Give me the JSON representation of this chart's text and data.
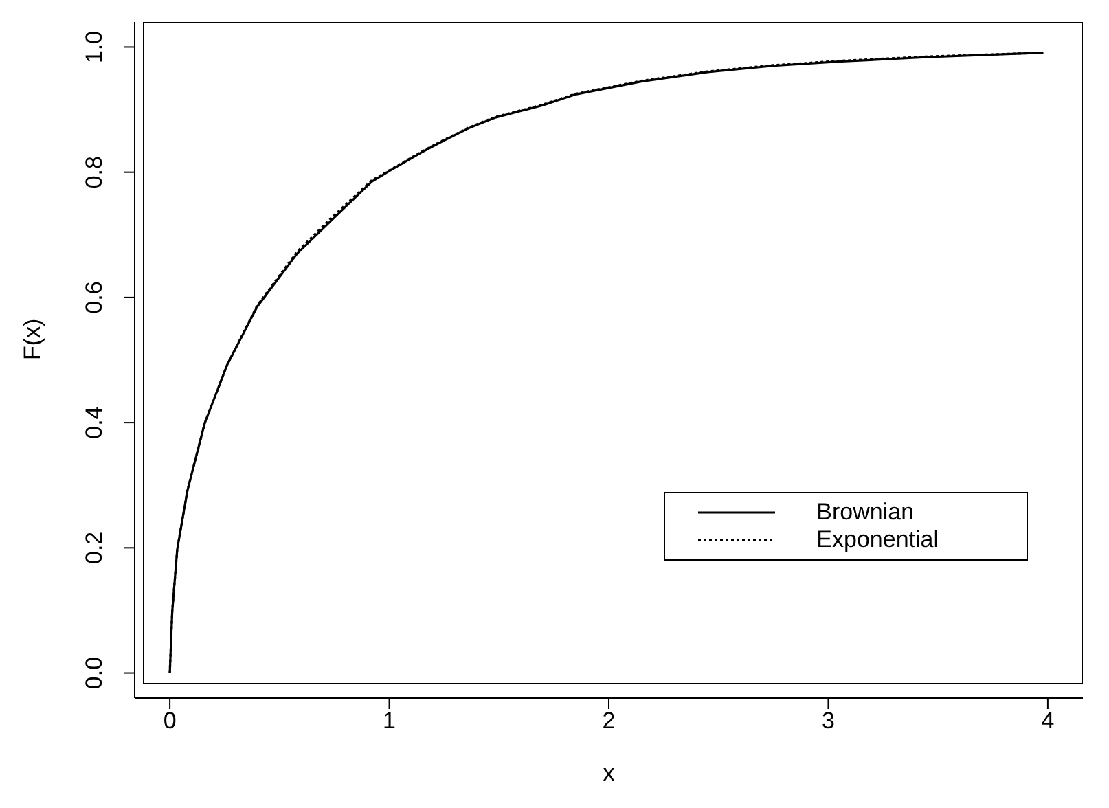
{
  "chart_data": {
    "type": "line",
    "xlabel": "x",
    "ylabel": "F(x)",
    "xlim": [
      -0.16,
      4.16
    ],
    "xticks": [
      0,
      1,
      2,
      3,
      4
    ],
    "ylim": [
      -0.04,
      1.04
    ],
    "yticks": [
      {
        "value": 0,
        "label": "0.0"
      },
      0.2,
      0.4,
      0.6,
      0.8,
      {
        "value": 1,
        "label": "1.0"
      }
    ],
    "legend": "bottom right",
    "marker": "none",
    "series": [
      {
        "name": "Brownian",
        "color": "#000000",
        "line_style": "solid",
        "x": [
          0,
          0.011,
          0.034,
          0.08,
          0.159,
          0.261,
          0.398,
          0.58,
          0.739,
          0.92,
          1.0,
          1.148,
          1.24,
          1.36,
          1.48,
          1.7,
          1.845,
          2.148,
          2.45,
          2.75,
          3.06,
          3.46,
          3.98
        ],
        "values": [
          0,
          0.098,
          0.198,
          0.291,
          0.399,
          0.492,
          0.585,
          0.67,
          0.724,
          0.785,
          0.802,
          0.832,
          0.849,
          0.87,
          0.887,
          0.907,
          0.924,
          0.945,
          0.96,
          0.97,
          0.977,
          0.984,
          0.991
        ]
      },
      {
        "name": "Exponential",
        "color": "#000000",
        "line_style": "dotted",
        "x": [
          0,
          0.011,
          0.034,
          0.08,
          0.159,
          0.261,
          0.398,
          0.58,
          0.739,
          0.92,
          1.0,
          1.148,
          1.24,
          1.36,
          1.48,
          1.7,
          1.845,
          2.148,
          2.45,
          2.75,
          3.06,
          3.46,
          3.98
        ],
        "values": [
          0,
          0.098,
          0.198,
          0.291,
          0.399,
          0.492,
          0.587,
          0.673,
          0.728,
          0.787,
          0.803,
          0.833,
          0.85,
          0.871,
          0.888,
          0.908,
          0.925,
          0.946,
          0.961,
          0.971,
          0.978,
          0.985,
          0.991
        ]
      }
    ]
  }
}
